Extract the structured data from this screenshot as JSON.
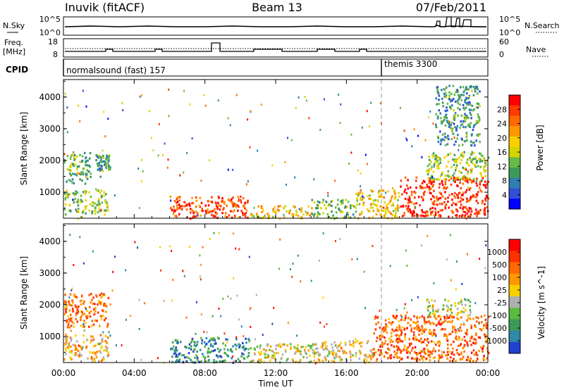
{
  "header": {
    "station": "Inuvik (fitACF)",
    "beam": "Beam 13",
    "date": "07/Feb/2011"
  },
  "strips": {
    "nsky_label": "N.Sky",
    "nsky_ticks": [
      "10^5",
      "10^0"
    ],
    "nsearch_label": "N.Search",
    "nsearch_ticks": [
      "10^5",
      "10^0"
    ],
    "freq_label": "Freq.",
    "freq_unit": "[MHz]",
    "freq_ticks": [
      "18",
      "8"
    ],
    "nave_label": "Nave",
    "nave_ticks": [
      "60",
      "0"
    ],
    "cpid_label": "CPID",
    "cpid_segments": [
      {
        "name": "normalsound (fast) 157",
        "start_hr": 0,
        "end_hr": 18
      },
      {
        "name": "themis 3300",
        "start_hr": 18,
        "end_hr": 24
      }
    ]
  },
  "chart_data": [
    {
      "type": "heatmap",
      "title": "",
      "xlabel": "Time UT",
      "ylabel": "Slant Range [km]",
      "x_ticks": [
        "00:00",
        "04:00",
        "08:00",
        "12:00",
        "16:00",
        "20:00",
        "00:00"
      ],
      "xlim_hours": [
        0,
        24
      ],
      "y_ticks": [
        "4000",
        "3000",
        "2000",
        "1000"
      ],
      "ylim_km": [
        180,
        4550
      ],
      "colorbar": {
        "label": "Power [dB]",
        "tick_labels": [
          "28",
          "24",
          "20",
          "16",
          "12",
          "8",
          "4"
        ],
        "tick_values": [
          28,
          24,
          20,
          16,
          12,
          8,
          4
        ],
        "range": [
          0,
          32
        ],
        "colors": [
          "#0000ff",
          "#3050d8",
          "#2e7fb0",
          "#3c9a58",
          "#66bb46",
          "#d6d400",
          "#f8d000",
          "#ff9800",
          "#ff6a00",
          "#ff3a00",
          "#ff0000"
        ]
      },
      "regions": [
        {
          "t0": 0.0,
          "t1": 1.5,
          "r0": 1300,
          "r1": 2300,
          "level": 0.35
        },
        {
          "t0": 0.0,
          "t1": 2.5,
          "r0": 300,
          "r1": 1100,
          "level": 0.45
        },
        {
          "t0": 1.8,
          "t1": 2.6,
          "r0": 1700,
          "r1": 2200,
          "level": 0.3
        },
        {
          "t0": 6.0,
          "t1": 10.5,
          "r0": 200,
          "r1": 900,
          "level": 0.85
        },
        {
          "t0": 10.5,
          "t1": 14.0,
          "r0": 200,
          "r1": 600,
          "level": 0.6
        },
        {
          "t0": 14.0,
          "t1": 16.5,
          "r0": 200,
          "r1": 800,
          "level": 0.4
        },
        {
          "t0": 16.5,
          "t1": 19.0,
          "r0": 200,
          "r1": 1100,
          "level": 0.6
        },
        {
          "t0": 19.0,
          "t1": 24.0,
          "r0": 250,
          "r1": 1500,
          "level": 0.9
        },
        {
          "t0": 20.5,
          "t1": 24.0,
          "r0": 1400,
          "r1": 2300,
          "level": 0.45
        },
        {
          "t0": 21.0,
          "t1": 23.5,
          "r0": 2500,
          "r1": 4400,
          "level": 0.3
        }
      ]
    },
    {
      "type": "heatmap",
      "title": "",
      "xlabel": "Time UT",
      "ylabel": "Slant Range [km]",
      "x_ticks": [
        "00:00",
        "04:00",
        "08:00",
        "12:00",
        "16:00",
        "20:00",
        "00:00"
      ],
      "xlim_hours": [
        0,
        24
      ],
      "y_ticks": [
        "4000",
        "3000",
        "2000",
        "1000"
      ],
      "ylim_km": [
        180,
        4550
      ],
      "colorbar": {
        "label": "Velocity [m s^-1]",
        "tick_labels": [
          "1000",
          "500",
          "100",
          "25",
          "-25",
          "-100",
          "-500",
          "-1000"
        ],
        "tick_values": [
          1000,
          500,
          100,
          25,
          -25,
          -100,
          -500,
          -1000
        ],
        "colors": [
          "#2040d0",
          "#2e8aa8",
          "#3c9a58",
          "#5bbb3c",
          "#b0b0b0",
          "#f8d000",
          "#ff9800",
          "#ff6a00",
          "#ff3000",
          "#ff0000"
        ]
      },
      "regions": [
        {
          "t0": 0.0,
          "t1": 2.5,
          "r0": 1300,
          "r1": 2400,
          "level": 0.72
        },
        {
          "t0": 0.0,
          "t1": 2.5,
          "r0": 250,
          "r1": 1100,
          "level": 0.6
        },
        {
          "t0": 6.0,
          "t1": 10.5,
          "r0": 200,
          "r1": 1000,
          "level": 0.2
        },
        {
          "t0": 10.5,
          "t1": 14.5,
          "r0": 200,
          "r1": 800,
          "level": 0.5
        },
        {
          "t0": 14.5,
          "t1": 17.5,
          "r0": 200,
          "r1": 900,
          "level": 0.55
        },
        {
          "t0": 17.5,
          "t1": 24.0,
          "r0": 250,
          "r1": 1700,
          "level": 0.75
        },
        {
          "t0": 20.5,
          "t1": 23.0,
          "r0": 1700,
          "r1": 2200,
          "level": 0.45
        }
      ]
    }
  ]
}
